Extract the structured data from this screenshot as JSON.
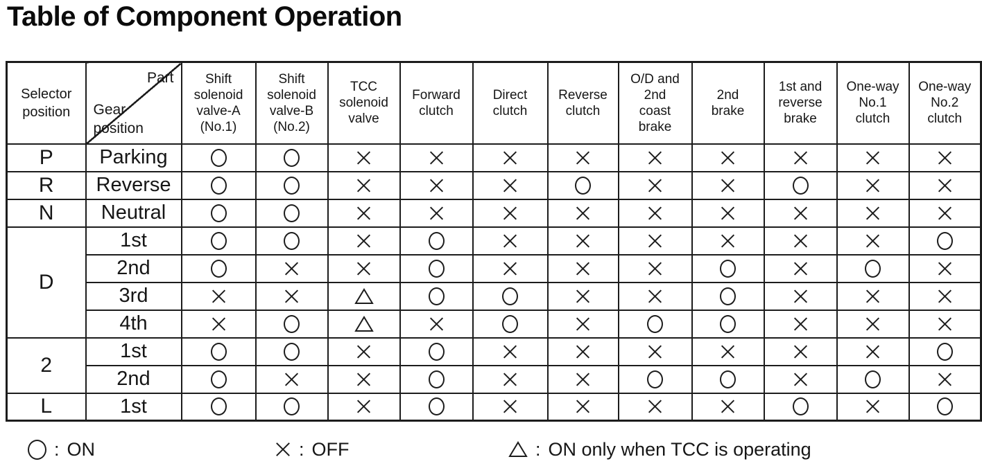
{
  "title": "Table of Component Operation",
  "table": {
    "selector_header": "Selector\nposition",
    "corner": {
      "part": "Part",
      "gear": "Gear\nposition"
    },
    "columns": [
      "Shift\nsolenoid\nvalve-A\n(No.1)",
      "Shift\nsolenoid\nvalve-B\n(No.2)",
      "TCC\nsolenoid\nvalve",
      "Forward\nclutch",
      "Direct\nclutch",
      "Reverse\nclutch",
      "O/D and\n2nd\ncoast\nbrake",
      "2nd\nbrake",
      "1st and\nreverse\nbrake",
      "One-way\nNo.1\nclutch",
      "One-way\nNo.2\nclutch"
    ],
    "groups": [
      {
        "selector": "P",
        "rows": [
          {
            "gear": "Parking",
            "cells": [
              "○",
              "○",
              "×",
              "×",
              "×",
              "×",
              "×",
              "×",
              "×",
              "×",
              "×"
            ]
          }
        ]
      },
      {
        "selector": "R",
        "rows": [
          {
            "gear": "Reverse",
            "cells": [
              "○",
              "○",
              "×",
              "×",
              "×",
              "○",
              "×",
              "×",
              "○",
              "×",
              "×"
            ]
          }
        ]
      },
      {
        "selector": "N",
        "rows": [
          {
            "gear": "Neutral",
            "cells": [
              "○",
              "○",
              "×",
              "×",
              "×",
              "×",
              "×",
              "×",
              "×",
              "×",
              "×"
            ]
          }
        ]
      },
      {
        "selector": "D",
        "rows": [
          {
            "gear": "1st",
            "cells": [
              "○",
              "○",
              "×",
              "○",
              "×",
              "×",
              "×",
              "×",
              "×",
              "×",
              "○"
            ]
          },
          {
            "gear": "2nd",
            "cells": [
              "○",
              "×",
              "×",
              "○",
              "×",
              "×",
              "×",
              "○",
              "×",
              "○",
              "×"
            ]
          },
          {
            "gear": "3rd",
            "cells": [
              "×",
              "×",
              "△",
              "○",
              "○",
              "×",
              "×",
              "○",
              "×",
              "×",
              "×"
            ]
          },
          {
            "gear": "4th",
            "cells": [
              "×",
              "○",
              "△",
              "×",
              "○",
              "×",
              "○",
              "○",
              "×",
              "×",
              "×"
            ]
          }
        ]
      },
      {
        "selector": "2",
        "rows": [
          {
            "gear": "1st",
            "cells": [
              "○",
              "○",
              "×",
              "○",
              "×",
              "×",
              "×",
              "×",
              "×",
              "×",
              "○"
            ]
          },
          {
            "gear": "2nd",
            "cells": [
              "○",
              "×",
              "×",
              "○",
              "×",
              "×",
              "○",
              "○",
              "×",
              "○",
              "×"
            ]
          }
        ]
      },
      {
        "selector": "L",
        "rows": [
          {
            "gear": "1st",
            "cells": [
              "○",
              "○",
              "×",
              "○",
              "×",
              "×",
              "×",
              "×",
              "○",
              "×",
              "○"
            ]
          }
        ]
      }
    ]
  },
  "legend": {
    "separator": ":",
    "items": [
      {
        "symbol": "○",
        "meaning": "ON"
      },
      {
        "symbol": "×",
        "meaning": "OFF"
      },
      {
        "symbol": "△",
        "meaning": "ON only when TCC is operating"
      }
    ]
  },
  "colors": {
    "ink": "#161616",
    "border": "#1c1c1c",
    "background": "#ffffff"
  }
}
